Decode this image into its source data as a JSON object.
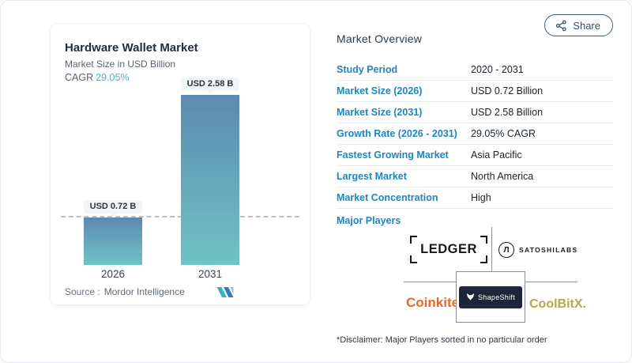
{
  "chart_data": {
    "type": "bar",
    "title": "Hardware Wallet Market",
    "subtitle": "Market Size in USD Billion",
    "cagr_label": "CAGR",
    "cagr_value": "29.05%",
    "categories": [
      "2026",
      "2031"
    ],
    "values": [
      0.72,
      2.58
    ],
    "bar_value_labels": [
      "USD 0.72 B",
      "USD 2.58 B"
    ],
    "ylabel": "Market Size (USD Billion)",
    "ylim": [
      0,
      2.58
    ],
    "reference_line_at": 0.72,
    "legend": "none",
    "grid": "dashed reference line at 2026 value only",
    "bar_gradient": [
      "#5b8ab1",
      "#70c3c5"
    ],
    "source_label": "Source :",
    "source_name": "Mordor Intelligence"
  },
  "share_button": {
    "label": "Share"
  },
  "overview": {
    "title": "Market Overview",
    "rows": [
      {
        "label": "Study Period",
        "value": "2020 - 2031"
      },
      {
        "label": "Market Size (2026)",
        "value": "USD 0.72 Billion"
      },
      {
        "label": "Market Size (2031)",
        "value": "USD 2.58 Billion"
      },
      {
        "label": "Growth Rate (2026 - 2031)",
        "value": "29.05% CAGR"
      },
      {
        "label": "Fastest Growing Market",
        "value": "Asia Pacific"
      },
      {
        "label": "Largest Market",
        "value": "North America"
      },
      {
        "label": "Market Concentration",
        "value": "High"
      }
    ],
    "major_players_label": "Major Players",
    "major_players": [
      {
        "name": "Ledger",
        "display": "LEDGER"
      },
      {
        "name": "SatoshiLabs",
        "display": "SATOSHILABS",
        "icon_glyph": "Л"
      },
      {
        "name": "Coinkite",
        "display": "Coinkite"
      },
      {
        "name": "ShapeShift",
        "display": "ShapeShift"
      },
      {
        "name": "CoolBitX",
        "display": "CoolBitX."
      }
    ],
    "disclaimer": "*Disclaimer: Major Players sorted in no particular order"
  },
  "colors": {
    "label_blue": "#1d86c0",
    "cagr_teal": "#58aecb",
    "bar_top": "#5b8ab1",
    "bar_bottom": "#70c3c5",
    "coinkite_orange": "#f1661f",
    "shapeshift_navy": "#1f2438",
    "coolbitx_olive": "#b1a74d",
    "share_border": "#40607e"
  }
}
